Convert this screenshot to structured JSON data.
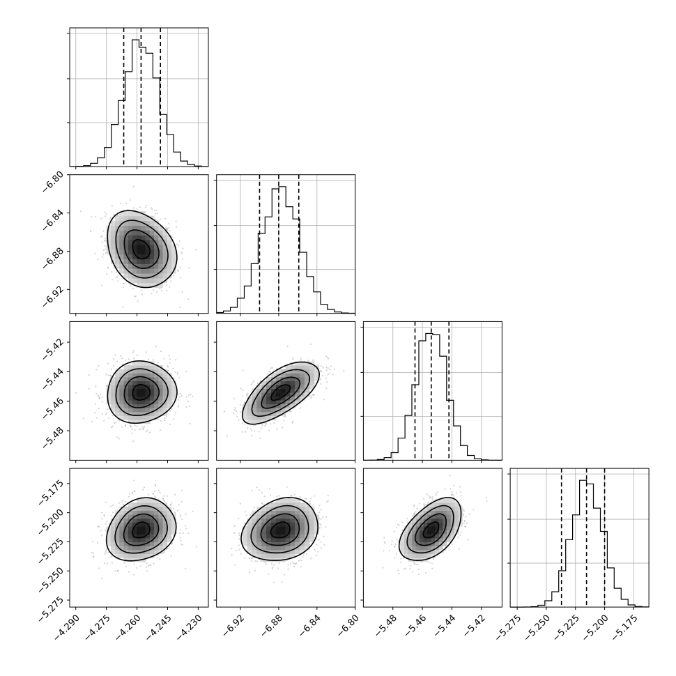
{
  "chart_data": {
    "type": "corner",
    "parameters": [
      {
        "range": [
          -4.293,
          -4.225
        ],
        "ticks": [
          -4.29,
          -4.275,
          -4.26,
          -4.245,
          -4.23
        ],
        "tick_labels": [
          "−4.290",
          "−4.275",
          "−4.260",
          "−4.245",
          "−4.230"
        ],
        "mean": -4.258,
        "sigma": 0.0085,
        "quantiles": [
          -4.2665,
          -4.258,
          -4.2485
        ]
      },
      {
        "range": [
          -6.945,
          -6.8
        ],
        "ticks": [
          -6.92,
          -6.88,
          -6.84,
          -6.8
        ],
        "tick_labels": [
          "−6.92",
          "−6.88",
          "−6.84",
          "−6.80"
        ],
        "mean": -6.878,
        "sigma": 0.02,
        "quantiles": [
          -6.9,
          -6.88,
          -6.859
        ]
      },
      {
        "range": [
          -5.5,
          -5.406
        ],
        "ticks": [
          -5.48,
          -5.46,
          -5.44,
          -5.42
        ],
        "tick_labels": [
          "−5.48",
          "−5.46",
          "−5.44",
          "−5.42"
        ],
        "mean": -5.454,
        "sigma": 0.0105,
        "quantiles": [
          -5.465,
          -5.454,
          -5.442
        ]
      },
      {
        "range": [
          -5.281,
          -5.162
        ],
        "ticks": [
          -5.275,
          -5.25,
          -5.225,
          -5.2,
          -5.175
        ],
        "tick_labels": [
          "−5.275",
          "−5.250",
          "−5.225",
          "−5.200",
          "−5.175"
        ],
        "mean": -5.215,
        "sigma": 0.0135,
        "quantiles": [
          -5.237,
          -5.2155,
          -5.2
        ]
      }
    ],
    "correlations": {
      "1-0": -0.25,
      "2-0": 0.05,
      "2-1": 0.65,
      "3-0": 0.2,
      "3-1": 0.2,
      "3-2": 0.5
    },
    "contour_levels_sigma": [
      0.5,
      1.0,
      1.5,
      2.0
    ],
    "histogram_bins": 20,
    "grid": true,
    "colors": {
      "points": "#808080",
      "lines": "#000000"
    }
  }
}
